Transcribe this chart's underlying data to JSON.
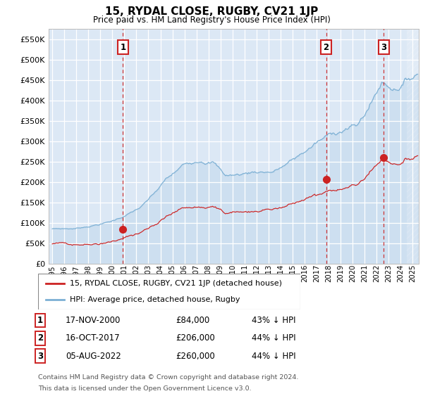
{
  "title": "15, RYDAL CLOSE, RUGBY, CV21 1JP",
  "subtitle": "Price paid vs. HM Land Registry's House Price Index (HPI)",
  "ylim": [
    0,
    575000
  ],
  "yticks": [
    0,
    50000,
    100000,
    150000,
    200000,
    250000,
    300000,
    350000,
    400000,
    450000,
    500000,
    550000
  ],
  "ytick_labels": [
    "£0",
    "£50K",
    "£100K",
    "£150K",
    "£200K",
    "£250K",
    "£300K",
    "£350K",
    "£400K",
    "£450K",
    "£500K",
    "£550K"
  ],
  "xlim_start": 1994.7,
  "xlim_end": 2025.5,
  "xtick_years": [
    1995,
    1996,
    1997,
    1998,
    1999,
    2000,
    2001,
    2002,
    2003,
    2004,
    2005,
    2006,
    2007,
    2008,
    2009,
    2010,
    2011,
    2012,
    2013,
    2014,
    2015,
    2016,
    2017,
    2018,
    2019,
    2020,
    2021,
    2022,
    2023,
    2024,
    2025
  ],
  "hpi_color": "#7bafd4",
  "price_color": "#cc2222",
  "vline_color": "#cc2222",
  "bg_color": "#dce8f5",
  "grid_color": "#ffffff",
  "legend_label_price": "15, RYDAL CLOSE, RUGBY, CV21 1JP (detached house)",
  "legend_label_hpi": "HPI: Average price, detached house, Rugby",
  "sales": [
    {
      "num": 1,
      "date": "17-NOV-2000",
      "year": 2000.88,
      "price": 84000,
      "label": "£84,000",
      "pct": "43% ↓ HPI"
    },
    {
      "num": 2,
      "date": "16-OCT-2017",
      "year": 2017.79,
      "price": 206000,
      "label": "£206,000",
      "pct": "44% ↓ HPI"
    },
    {
      "num": 3,
      "date": "05-AUG-2022",
      "year": 2022.59,
      "price": 260000,
      "label": "£260,000",
      "pct": "44% ↓ HPI"
    }
  ],
  "footer1": "Contains HM Land Registry data © Crown copyright and database right 2024.",
  "footer2": "This data is licensed under the Open Government Licence v3.0."
}
